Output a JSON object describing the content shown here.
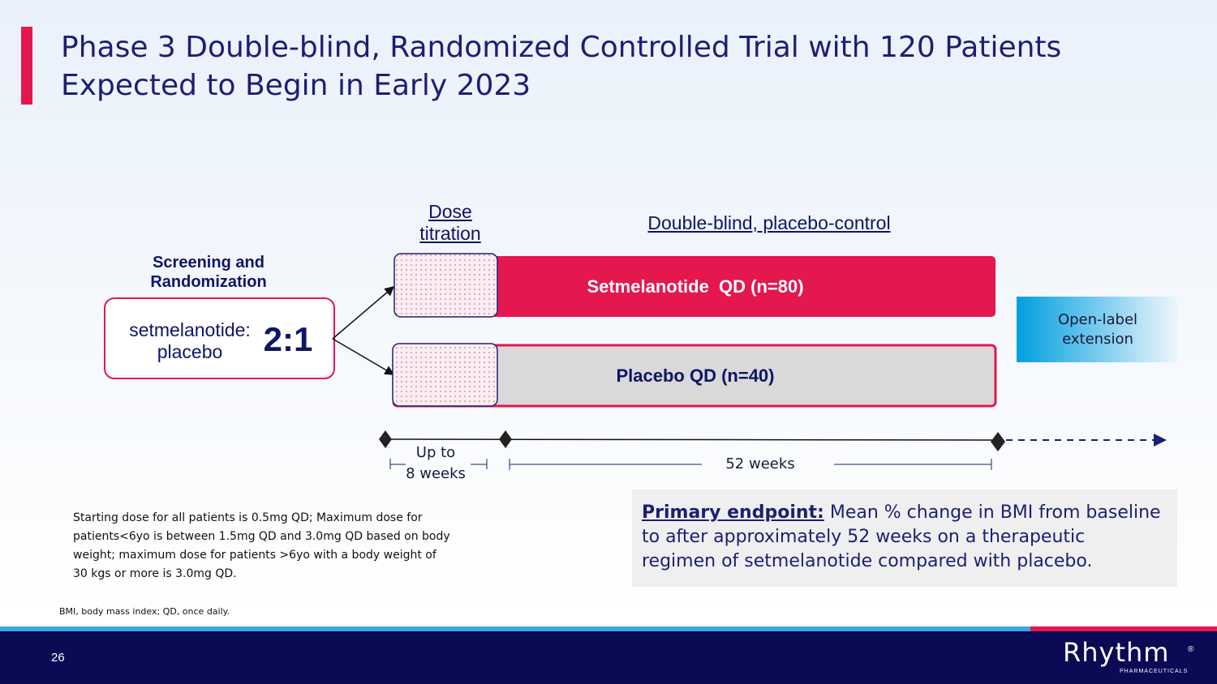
{
  "header": {
    "title_lines": [
      "Phase 3 Double-blind, Randomized Controlled Trial with 120 Patients",
      "Expected to Begin in Early 2023"
    ]
  },
  "design": {
    "dose_titration": [
      "Dose",
      "titration"
    ],
    "double_blind": "Double-blind, placebo-control",
    "screening": [
      "Screening and",
      "Randomization"
    ],
    "ratio_labels": [
      "setmelanotide:",
      "placebo"
    ],
    "ratio": "2:1",
    "arms": [
      "Setmelanotide  QD (n=80)",
      "Placebo QD (n=40)"
    ],
    "extension": [
      "Open-label",
      "extension"
    ],
    "titration_period": [
      "Up to",
      "8 weeks"
    ],
    "treatment_period": "52 weeks"
  },
  "footnote_lines": [
    "Starting dose for all patients is 0.5mg QD; Maximum dose for",
    "patients<6yo is between 1.5mg QD and 3.0mg QD based on body",
    "weight; maximum dose for patients >6yo with a body weight of",
    "30 kgs or more is 3.0mg QD."
  ],
  "endpoint": {
    "label": "Primary endpoint:",
    "lines": [
      " Mean % change in BMI from baseline",
      "to after approximately 52 weeks on a therapeutic",
      "regimen of setmelanotide compared with placebo."
    ]
  },
  "abbreviations": "BMI, body mass index; QD, once daily.",
  "footer": {
    "page": "26",
    "logo": "Rhythm",
    "logo_mark": "®",
    "logo_sub": "PHARMACEUTICALS"
  }
}
